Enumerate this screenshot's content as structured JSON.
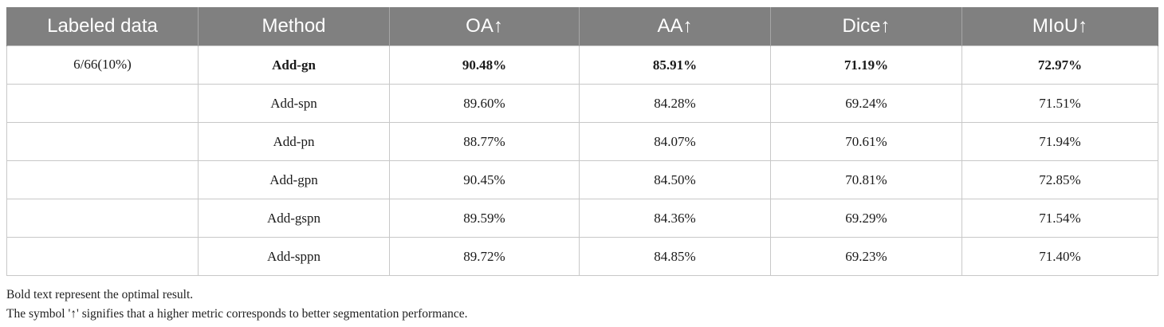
{
  "table": {
    "headers": [
      "Labeled data",
      "Method",
      "OA↑",
      "AA↑",
      "Dice↑",
      "MIoU↑"
    ],
    "rows": [
      {
        "labeled": "6/66(10%)",
        "method": "Add-gn",
        "oa": "90.48%",
        "aa": "85.91%",
        "dice": "71.19%",
        "miou": "72.97%",
        "bold": true
      },
      {
        "labeled": "",
        "method": "Add-spn",
        "oa": "89.60%",
        "aa": "84.28%",
        "dice": "69.24%",
        "miou": "71.51%",
        "bold": false
      },
      {
        "labeled": "",
        "method": "Add-pn",
        "oa": "88.77%",
        "aa": "84.07%",
        "dice": "70.61%",
        "miou": "71.94%",
        "bold": false
      },
      {
        "labeled": "",
        "method": "Add-gpn",
        "oa": "90.45%",
        "aa": "84.50%",
        "dice": "70.81%",
        "miou": "72.85%",
        "bold": false
      },
      {
        "labeled": "",
        "method": "Add-gspn",
        "oa": "89.59%",
        "aa": "84.36%",
        "dice": "69.29%",
        "miou": "71.54%",
        "bold": false
      },
      {
        "labeled": "",
        "method": "Add-sppn",
        "oa": "89.72%",
        "aa": "84.85%",
        "dice": "69.23%",
        "miou": "71.40%",
        "bold": false
      }
    ]
  },
  "notes": {
    "line1": "Bold text represent the optimal result.",
    "line2": "The symbol '↑' signifies that a higher metric corresponds to better segmentation performance."
  }
}
